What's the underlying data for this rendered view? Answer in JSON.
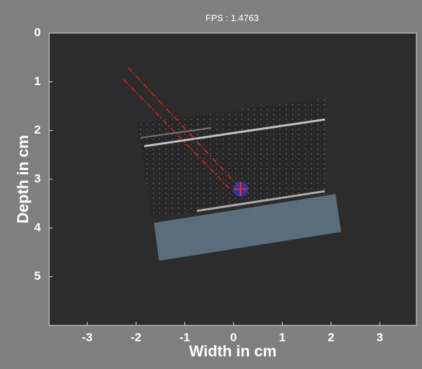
{
  "header": {
    "title": "FPS : 1.4763"
  },
  "axes": {
    "xlabel": "Width in cm",
    "ylabel": "Depth in cm",
    "xlim": [
      -3.78,
      3.75
    ],
    "ylim": [
      0,
      6
    ],
    "xticks": [
      -3,
      -2,
      -1,
      0,
      1,
      2,
      3
    ],
    "yticks": [
      0,
      1,
      2,
      3,
      4,
      5
    ]
  }
}
